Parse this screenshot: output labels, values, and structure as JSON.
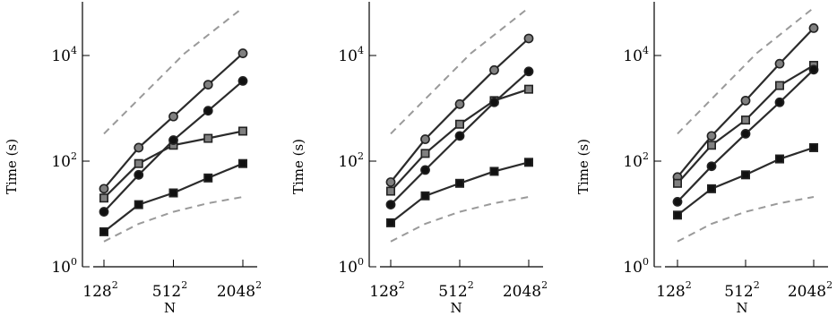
{
  "chart_data": [
    {
      "type": "line",
      "xlabel": "N",
      "ylabel": "Time (s)",
      "yscale": "log",
      "ylim": [
        1,
        100000
      ],
      "x_ticks": [
        {
          "base": "128",
          "exp": "2"
        },
        {
          "base": "512",
          "exp": "2"
        },
        {
          "base": "2048",
          "exp": "2"
        }
      ],
      "y_ticks": [
        {
          "base": "10",
          "exp": "0",
          "value": 1
        },
        {
          "base": "10",
          "exp": "2",
          "value": 100
        },
        {
          "base": "10",
          "exp": "4",
          "value": 10000
        }
      ],
      "x": [
        128,
        256,
        512,
        1024,
        2048
      ],
      "series": [
        {
          "marker": "circle",
          "color": "#808080",
          "values": [
            30,
            180,
            700,
            2800,
            11000
          ]
        },
        {
          "marker": "square",
          "color": "#808080",
          "values": [
            20,
            90,
            200,
            270,
            370
          ]
        },
        {
          "marker": "circle",
          "color": "#111111",
          "values": [
            11,
            55,
            250,
            900,
            3300
          ]
        },
        {
          "marker": "square",
          "color": "#111111",
          "values": [
            4.6,
            15,
            25,
            48,
            90
          ]
        }
      ],
      "reference_lines": [
        {
          "values": [
            330,
            11000,
            80000
          ]
        },
        {
          "values": [
            3,
            6.5,
            11,
            16,
            21
          ]
        }
      ]
    },
    {
      "type": "line",
      "xlabel": "N",
      "ylabel": "Time (s)",
      "yscale": "log",
      "ylim": [
        1,
        100000
      ],
      "x_ticks": [
        {
          "base": "128",
          "exp": "2"
        },
        {
          "base": "512",
          "exp": "2"
        },
        {
          "base": "2048",
          "exp": "2"
        }
      ],
      "y_ticks": [
        {
          "base": "10",
          "exp": "0",
          "value": 1
        },
        {
          "base": "10",
          "exp": "2",
          "value": 100
        },
        {
          "base": "10",
          "exp": "4",
          "value": 10000
        }
      ],
      "x": [
        128,
        256,
        512,
        1024,
        2048
      ],
      "series": [
        {
          "marker": "circle",
          "color": "#808080",
          "values": [
            40,
            260,
            1200,
            5300,
            21000
          ]
        },
        {
          "marker": "square",
          "color": "#808080",
          "values": [
            27,
            140,
            500,
            1400,
            2300
          ]
        },
        {
          "marker": "circle",
          "color": "#111111",
          "values": [
            15,
            68,
            300,
            1300,
            5000
          ]
        },
        {
          "marker": "square",
          "color": "#111111",
          "values": [
            6.8,
            22,
            38,
            64,
            95
          ]
        }
      ],
      "reference_lines": [
        {
          "values": [
            330,
            11000,
            80000
          ]
        },
        {
          "values": [
            3,
            6.5,
            11,
            16,
            21
          ]
        }
      ]
    },
    {
      "type": "line",
      "xlabel": "N",
      "ylabel": "Time (s)",
      "yscale": "log",
      "ylim": [
        1,
        100000
      ],
      "x_ticks": [
        {
          "base": "128",
          "exp": "2"
        },
        {
          "base": "512",
          "exp": "2"
        },
        {
          "base": "2048",
          "exp": "2"
        }
      ],
      "y_ticks": [
        {
          "base": "10",
          "exp": "0",
          "value": 1
        },
        {
          "base": "10",
          "exp": "2",
          "value": 100
        },
        {
          "base": "10",
          "exp": "4",
          "value": 10000
        }
      ],
      "x": [
        128,
        256,
        512,
        1024,
        2048
      ],
      "series": [
        {
          "marker": "circle",
          "color": "#808080",
          "values": [
            50,
            300,
            1400,
            7000,
            33000
          ]
        },
        {
          "marker": "square",
          "color": "#808080",
          "values": [
            38,
            200,
            600,
            2700,
            6500
          ]
        },
        {
          "marker": "circle",
          "color": "#111111",
          "values": [
            17,
            80,
            330,
            1300,
            5400
          ]
        },
        {
          "marker": "square",
          "color": "#111111",
          "values": [
            9.5,
            30,
            55,
            110,
            180
          ]
        }
      ],
      "reference_lines": [
        {
          "values": [
            330,
            11000,
            80000
          ]
        },
        {
          "values": [
            3,
            6.5,
            11,
            16,
            21
          ]
        }
      ]
    }
  ]
}
